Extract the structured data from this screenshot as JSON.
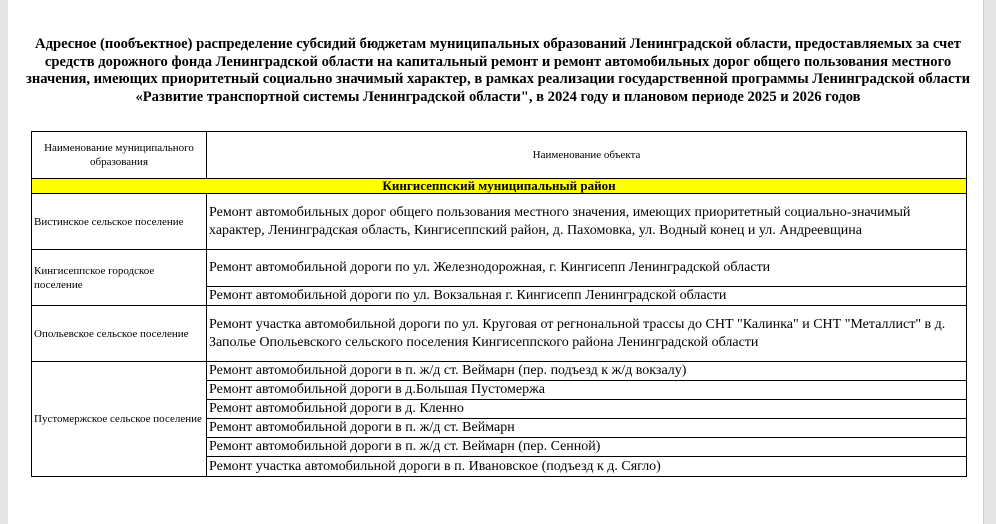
{
  "title": "Адресное (пообъектное) распределение субсидий бюджетам муниципальных образований Ленинградской области, предоставляемых за счет средств дорожного фонда Ленинградской области на капитальный ремонт и ремонт автомобильных дорог общего пользования местного значения, имеющих приоритетный социально значимый характер, в рамках реализации государственной программы Ленинградской области «Развитие транспортной системы Ленинградской области\", в 2024 году и плановом периоде 2025 и 2026 годов",
  "table": {
    "headers": [
      "Наименование муниципального образования",
      "Наименование объекта"
    ],
    "region": "Кингисеппский муниципальный район",
    "highlight_color": "#ffff00",
    "groups": [
      {
        "municipality": "Вистинское сельское поселение",
        "objects": [
          "Ремонт автомобильных дорог общего пользования местного значения, имеющих приоритетный социально-значимый характер, Ленинградская область, Кингисеппский район, д. Пахомовка, ул. Водный конец и ул. Андреевщина"
        ]
      },
      {
        "municipality": "Кингисеппское городское поселение",
        "objects": [
          "Ремонт автомобильной дороги по ул. Железнодорожная, г. Кингисепп Ленинградской области",
          "Ремонт автомобильной дороги по ул. Вокзальная г. Кингисепп Ленинградской области"
        ]
      },
      {
        "municipality": "Опольевское сельское поселение",
        "objects": [
          "Ремонт участка автомобильной дороги по ул. Круговая от регнональной трассы до СНТ \"Калинка\" и СНТ \"Металлист\" в д. Заполье Опольевского сельского поселения Кингисеппского района Ленинградской области"
        ]
      },
      {
        "municipality": "Пустомержское сельское поселение",
        "objects": [
          "Ремонт автомобильной дороги в п. ж/д ст. Веймарн (пер. подъезд к ж/д вокзалу)",
          "Ремонт автомобильной дороги в д.Большая Пустомержа",
          "Ремонт автомобильной дороги в д. Кленно",
          "Ремонт автомобильной дороги в п. ж/д ст. Веймарн",
          "Ремонт автомобильной дороги в п. ж/д ст. Веймарн (пер. Сенной)",
          "Ремонт участка автомобильной дороги в п. Ивановское (подъезд к д. Сягло)"
        ]
      }
    ]
  }
}
